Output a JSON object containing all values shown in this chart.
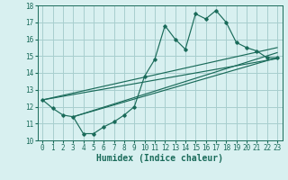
{
  "x_data": [
    0,
    1,
    2,
    3,
    4,
    5,
    6,
    7,
    8,
    9,
    10,
    11,
    12,
    13,
    14,
    15,
    16,
    17,
    18,
    19,
    20,
    21,
    22,
    23
  ],
  "y_main": [
    12.4,
    11.9,
    11.5,
    11.4,
    10.4,
    10.4,
    10.8,
    11.1,
    11.5,
    12.0,
    13.8,
    14.8,
    16.8,
    16.0,
    15.4,
    17.5,
    17.2,
    17.7,
    17.0,
    15.8,
    15.5,
    15.3,
    14.9,
    14.9
  ],
  "trend_line1_x": [
    0,
    23
  ],
  "trend_line1_y": [
    12.4,
    15.5
  ],
  "trend_line2_x": [
    3,
    23
  ],
  "trend_line2_y": [
    11.4,
    14.9
  ],
  "trend_line3_x": [
    3,
    23
  ],
  "trend_line3_y": [
    11.4,
    15.2
  ],
  "trend_line4_x": [
    0,
    23
  ],
  "trend_line4_y": [
    12.4,
    14.85
  ],
  "xlim": [
    -0.5,
    23.5
  ],
  "ylim": [
    10,
    18
  ],
  "xticks": [
    0,
    1,
    2,
    3,
    4,
    5,
    6,
    7,
    8,
    9,
    10,
    11,
    12,
    13,
    14,
    15,
    16,
    17,
    18,
    19,
    20,
    21,
    22,
    23
  ],
  "yticks": [
    10,
    11,
    12,
    13,
    14,
    15,
    16,
    17,
    18
  ],
  "xlabel": "Humidex (Indice chaleur)",
  "line_color": "#1a6b5a",
  "bg_color": "#d8f0f0",
  "grid_color": "#a8cece",
  "tick_fontsize": 5.5,
  "label_fontsize": 7
}
